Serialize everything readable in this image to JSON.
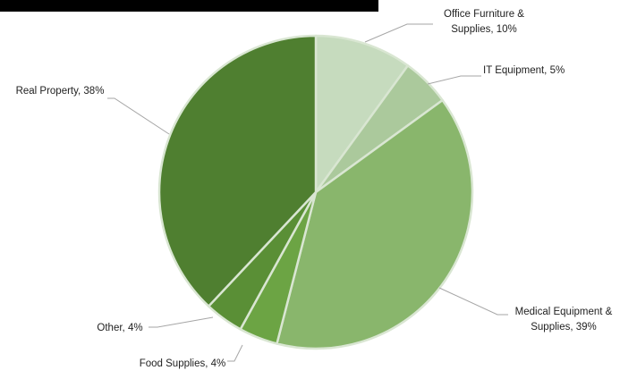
{
  "chart_data": {
    "type": "pie",
    "title": "",
    "slices": [
      {
        "label_lines": [
          "Office Furniture &",
          "Supplies, 10%"
        ],
        "value": 10,
        "color": "#c6dbbe"
      },
      {
        "label_lines": [
          "IT Equipment, 5%"
        ],
        "value": 5,
        "color": "#abc99c"
      },
      {
        "label_lines": [
          "Medical Equipment &",
          "Supplies, 39%"
        ],
        "value": 39,
        "color": "#89b66c"
      },
      {
        "label_lines": [
          "Food Supplies, 4%"
        ],
        "value": 4,
        "color": "#6ca444"
      },
      {
        "label_lines": [
          "Other, 4%"
        ],
        "value": 4,
        "color": "#5a8f36"
      },
      {
        "label_lines": [
          "Real Property, 38%"
        ],
        "value": 38,
        "color": "#4f7f30"
      }
    ],
    "legend": "none",
    "labels": "outside with leader lines"
  }
}
